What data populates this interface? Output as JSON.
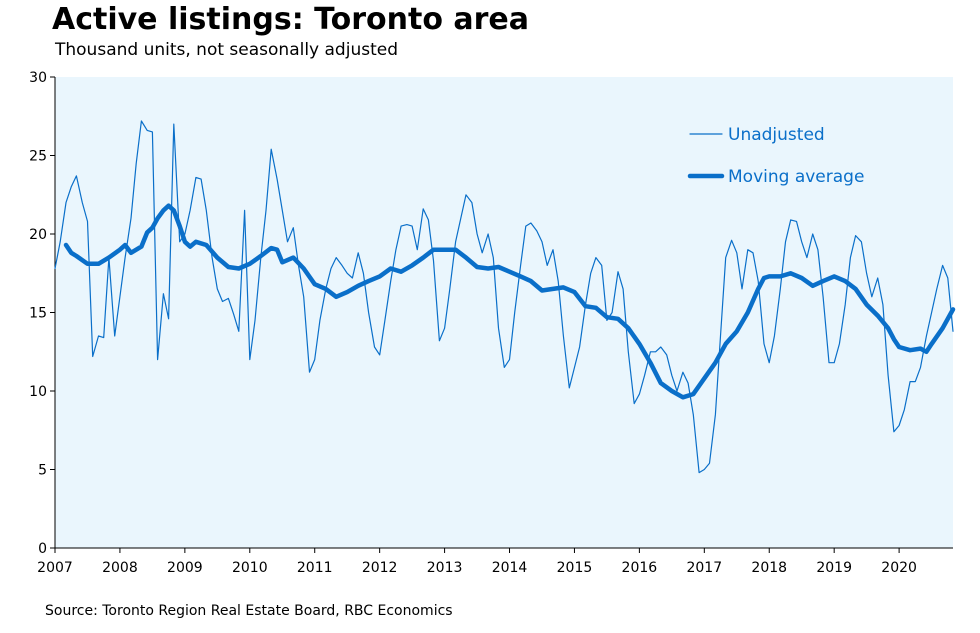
{
  "title": "Active listings: Toronto area",
  "subtitle": "Thousand units, not seasonally adjusted",
  "source": "Source: Toronto Region Real Estate Board, RBC Economics",
  "colors": {
    "plot_bg": "#eaf6fd",
    "line": "#0a6fc9",
    "legend_text": "#0a6fc9"
  },
  "chart_data": {
    "type": "line",
    "x_start": 2007,
    "x_end": 2020.83,
    "ylim": [
      0,
      30
    ],
    "y_ticks": [
      "0",
      "5",
      "10",
      "15",
      "20",
      "25",
      "30"
    ],
    "x_ticks": [
      "2007",
      "2008",
      "2009",
      "2010",
      "2011",
      "2012",
      "2013",
      "2014",
      "2015",
      "2016",
      "2017",
      "2018",
      "2019",
      "2020"
    ],
    "legend_position": "top-right",
    "series": [
      {
        "name": "Unadjusted",
        "style": "thin",
        "points": [
          [
            2007.0,
            17.8
          ],
          [
            2007.08,
            19.5
          ],
          [
            2007.17,
            22.0
          ],
          [
            2007.25,
            23.0
          ],
          [
            2007.33,
            23.7
          ],
          [
            2007.42,
            22.0
          ],
          [
            2007.5,
            20.8
          ],
          [
            2007.58,
            12.2
          ],
          [
            2007.67,
            13.5
          ],
          [
            2007.75,
            13.4
          ],
          [
            2007.83,
            18.5
          ],
          [
            2007.92,
            13.5
          ],
          [
            2008.0,
            16.0
          ],
          [
            2008.08,
            18.5
          ],
          [
            2008.17,
            21.0
          ],
          [
            2008.25,
            24.5
          ],
          [
            2008.33,
            27.2
          ],
          [
            2008.42,
            26.6
          ],
          [
            2008.5,
            26.5
          ],
          [
            2008.58,
            12.0
          ],
          [
            2008.67,
            16.2
          ],
          [
            2008.75,
            14.6
          ],
          [
            2008.83,
            27.0
          ],
          [
            2008.92,
            19.5
          ],
          [
            2009.0,
            20.0
          ],
          [
            2009.08,
            21.5
          ],
          [
            2009.17,
            23.6
          ],
          [
            2009.25,
            23.5
          ],
          [
            2009.33,
            21.5
          ],
          [
            2009.42,
            18.5
          ],
          [
            2009.5,
            16.5
          ],
          [
            2009.58,
            15.7
          ],
          [
            2009.67,
            15.9
          ],
          [
            2009.75,
            14.9
          ],
          [
            2009.83,
            13.8
          ],
          [
            2009.92,
            21.5
          ],
          [
            2010.0,
            12.0
          ],
          [
            2010.08,
            14.5
          ],
          [
            2010.17,
            18.5
          ],
          [
            2010.25,
            21.5
          ],
          [
            2010.33,
            25.4
          ],
          [
            2010.42,
            23.5
          ],
          [
            2010.5,
            21.5
          ],
          [
            2010.58,
            19.5
          ],
          [
            2010.67,
            20.4
          ],
          [
            2010.75,
            18.0
          ],
          [
            2010.83,
            16.0
          ],
          [
            2010.92,
            11.2
          ],
          [
            2011.0,
            12.0
          ],
          [
            2011.08,
            14.5
          ],
          [
            2011.17,
            16.5
          ],
          [
            2011.25,
            17.8
          ],
          [
            2011.33,
            18.5
          ],
          [
            2011.42,
            18.0
          ],
          [
            2011.5,
            17.5
          ],
          [
            2011.58,
            17.2
          ],
          [
            2011.67,
            18.8
          ],
          [
            2011.75,
            17.5
          ],
          [
            2011.83,
            15.0
          ],
          [
            2011.92,
            12.8
          ],
          [
            2012.0,
            12.3
          ],
          [
            2012.08,
            14.5
          ],
          [
            2012.17,
            17.0
          ],
          [
            2012.25,
            19.0
          ],
          [
            2012.33,
            20.5
          ],
          [
            2012.42,
            20.6
          ],
          [
            2012.5,
            20.5
          ],
          [
            2012.58,
            19.0
          ],
          [
            2012.67,
            21.6
          ],
          [
            2012.75,
            20.9
          ],
          [
            2012.83,
            18.3
          ],
          [
            2012.92,
            13.2
          ],
          [
            2013.0,
            14.0
          ],
          [
            2013.08,
            16.5
          ],
          [
            2013.17,
            19.5
          ],
          [
            2013.25,
            21.0
          ],
          [
            2013.33,
            22.5
          ],
          [
            2013.42,
            22.0
          ],
          [
            2013.5,
            20.0
          ],
          [
            2013.58,
            18.8
          ],
          [
            2013.67,
            20.0
          ],
          [
            2013.75,
            18.5
          ],
          [
            2013.83,
            14.0
          ],
          [
            2013.92,
            11.5
          ],
          [
            2014.0,
            12.0
          ],
          [
            2014.08,
            15.0
          ],
          [
            2014.17,
            18.0
          ],
          [
            2014.25,
            20.5
          ],
          [
            2014.33,
            20.7
          ],
          [
            2014.42,
            20.2
          ],
          [
            2014.5,
            19.5
          ],
          [
            2014.58,
            18.0
          ],
          [
            2014.67,
            19.0
          ],
          [
            2014.75,
            17.0
          ],
          [
            2014.83,
            13.5
          ],
          [
            2014.92,
            10.2
          ],
          [
            2015.0,
            11.5
          ],
          [
            2015.08,
            12.8
          ],
          [
            2015.17,
            15.5
          ],
          [
            2015.25,
            17.5
          ],
          [
            2015.33,
            18.5
          ],
          [
            2015.42,
            18.0
          ],
          [
            2015.5,
            14.5
          ],
          [
            2015.58,
            15.0
          ],
          [
            2015.67,
            17.6
          ],
          [
            2015.75,
            16.5
          ],
          [
            2015.83,
            12.5
          ],
          [
            2015.92,
            9.2
          ],
          [
            2016.0,
            9.8
          ],
          [
            2016.08,
            11.0
          ],
          [
            2016.17,
            12.5
          ],
          [
            2016.25,
            12.5
          ],
          [
            2016.33,
            12.8
          ],
          [
            2016.42,
            12.3
          ],
          [
            2016.5,
            11.0
          ],
          [
            2016.58,
            10.0
          ],
          [
            2016.67,
            11.2
          ],
          [
            2016.75,
            10.5
          ],
          [
            2016.83,
            8.5
          ],
          [
            2016.92,
            4.8
          ],
          [
            2017.0,
            5.0
          ],
          [
            2017.08,
            5.4
          ],
          [
            2017.17,
            8.5
          ],
          [
            2017.25,
            13.5
          ],
          [
            2017.33,
            18.5
          ],
          [
            2017.42,
            19.6
          ],
          [
            2017.5,
            18.8
          ],
          [
            2017.58,
            16.5
          ],
          [
            2017.67,
            19.0
          ],
          [
            2017.75,
            18.8
          ],
          [
            2017.83,
            17.0
          ],
          [
            2017.92,
            13.0
          ],
          [
            2018.0,
            11.8
          ],
          [
            2018.08,
            13.5
          ],
          [
            2018.17,
            16.5
          ],
          [
            2018.25,
            19.5
          ],
          [
            2018.33,
            20.9
          ],
          [
            2018.42,
            20.8
          ],
          [
            2018.5,
            19.5
          ],
          [
            2018.58,
            18.5
          ],
          [
            2018.67,
            20.0
          ],
          [
            2018.75,
            19.0
          ],
          [
            2018.83,
            16.0
          ],
          [
            2018.92,
            11.8
          ],
          [
            2019.0,
            11.8
          ],
          [
            2019.08,
            13.0
          ],
          [
            2019.17,
            15.5
          ],
          [
            2019.25,
            18.5
          ],
          [
            2019.33,
            19.9
          ],
          [
            2019.42,
            19.5
          ],
          [
            2019.5,
            17.5
          ],
          [
            2019.58,
            16.0
          ],
          [
            2019.67,
            17.2
          ],
          [
            2019.75,
            15.5
          ],
          [
            2019.83,
            11.0
          ],
          [
            2019.92,
            7.4
          ],
          [
            2020.0,
            7.8
          ],
          [
            2020.08,
            8.8
          ],
          [
            2020.17,
            10.6
          ],
          [
            2020.25,
            10.6
          ],
          [
            2020.33,
            11.5
          ],
          [
            2020.42,
            13.5
          ],
          [
            2020.5,
            15.0
          ],
          [
            2020.58,
            16.5
          ],
          [
            2020.67,
            18.0
          ],
          [
            2020.75,
            17.2
          ],
          [
            2020.83,
            13.8
          ]
        ]
      },
      {
        "name": "Moving average",
        "style": "thick",
        "points": [
          [
            2007.17,
            19.3
          ],
          [
            2007.25,
            18.8
          ],
          [
            2007.33,
            18.6
          ],
          [
            2007.5,
            18.1
          ],
          [
            2007.67,
            18.1
          ],
          [
            2007.83,
            18.5
          ],
          [
            2008.0,
            19.0
          ],
          [
            2008.08,
            19.3
          ],
          [
            2008.17,
            18.8
          ],
          [
            2008.25,
            19.0
          ],
          [
            2008.33,
            19.2
          ],
          [
            2008.42,
            20.1
          ],
          [
            2008.5,
            20.4
          ],
          [
            2008.58,
            21.0
          ],
          [
            2008.67,
            21.5
          ],
          [
            2008.75,
            21.8
          ],
          [
            2008.83,
            21.5
          ],
          [
            2008.92,
            20.5
          ],
          [
            2009.0,
            19.5
          ],
          [
            2009.08,
            19.2
          ],
          [
            2009.17,
            19.5
          ],
          [
            2009.33,
            19.3
          ],
          [
            2009.5,
            18.5
          ],
          [
            2009.67,
            17.9
          ],
          [
            2009.83,
            17.8
          ],
          [
            2010.0,
            18.1
          ],
          [
            2010.17,
            18.6
          ],
          [
            2010.33,
            19.1
          ],
          [
            2010.42,
            19.0
          ],
          [
            2010.5,
            18.2
          ],
          [
            2010.67,
            18.5
          ],
          [
            2010.83,
            17.8
          ],
          [
            2011.0,
            16.8
          ],
          [
            2011.17,
            16.5
          ],
          [
            2011.33,
            16.0
          ],
          [
            2011.5,
            16.3
          ],
          [
            2011.67,
            16.7
          ],
          [
            2011.83,
            17.0
          ],
          [
            2012.0,
            17.3
          ],
          [
            2012.17,
            17.8
          ],
          [
            2012.33,
            17.6
          ],
          [
            2012.5,
            18.0
          ],
          [
            2012.67,
            18.5
          ],
          [
            2012.83,
            19.0
          ],
          [
            2013.0,
            19.0
          ],
          [
            2013.17,
            19.0
          ],
          [
            2013.33,
            18.5
          ],
          [
            2013.5,
            17.9
          ],
          [
            2013.67,
            17.8
          ],
          [
            2013.83,
            17.9
          ],
          [
            2014.0,
            17.6
          ],
          [
            2014.17,
            17.3
          ],
          [
            2014.33,
            17.0
          ],
          [
            2014.5,
            16.4
          ],
          [
            2014.67,
            16.5
          ],
          [
            2014.83,
            16.6
          ],
          [
            2015.0,
            16.3
          ],
          [
            2015.17,
            15.4
          ],
          [
            2015.33,
            15.3
          ],
          [
            2015.5,
            14.7
          ],
          [
            2015.67,
            14.6
          ],
          [
            2015.83,
            14.0
          ],
          [
            2016.0,
            13.0
          ],
          [
            2016.17,
            11.8
          ],
          [
            2016.33,
            10.5
          ],
          [
            2016.5,
            10.0
          ],
          [
            2016.67,
            9.6
          ],
          [
            2016.83,
            9.8
          ],
          [
            2017.0,
            10.8
          ],
          [
            2017.17,
            11.8
          ],
          [
            2017.33,
            13.0
          ],
          [
            2017.5,
            13.8
          ],
          [
            2017.67,
            15.0
          ],
          [
            2017.83,
            16.5
          ],
          [
            2017.92,
            17.2
          ],
          [
            2018.0,
            17.3
          ],
          [
            2018.17,
            17.3
          ],
          [
            2018.33,
            17.5
          ],
          [
            2018.5,
            17.2
          ],
          [
            2018.67,
            16.7
          ],
          [
            2018.83,
            17.0
          ],
          [
            2019.0,
            17.3
          ],
          [
            2019.17,
            17.0
          ],
          [
            2019.33,
            16.5
          ],
          [
            2019.5,
            15.5
          ],
          [
            2019.67,
            14.8
          ],
          [
            2019.83,
            14.0
          ],
          [
            2019.92,
            13.3
          ],
          [
            2020.0,
            12.8
          ],
          [
            2020.17,
            12.6
          ],
          [
            2020.33,
            12.7
          ],
          [
            2020.42,
            12.5
          ],
          [
            2020.5,
            13.0
          ],
          [
            2020.67,
            14.0
          ],
          [
            2020.83,
            15.2
          ]
        ]
      }
    ]
  }
}
